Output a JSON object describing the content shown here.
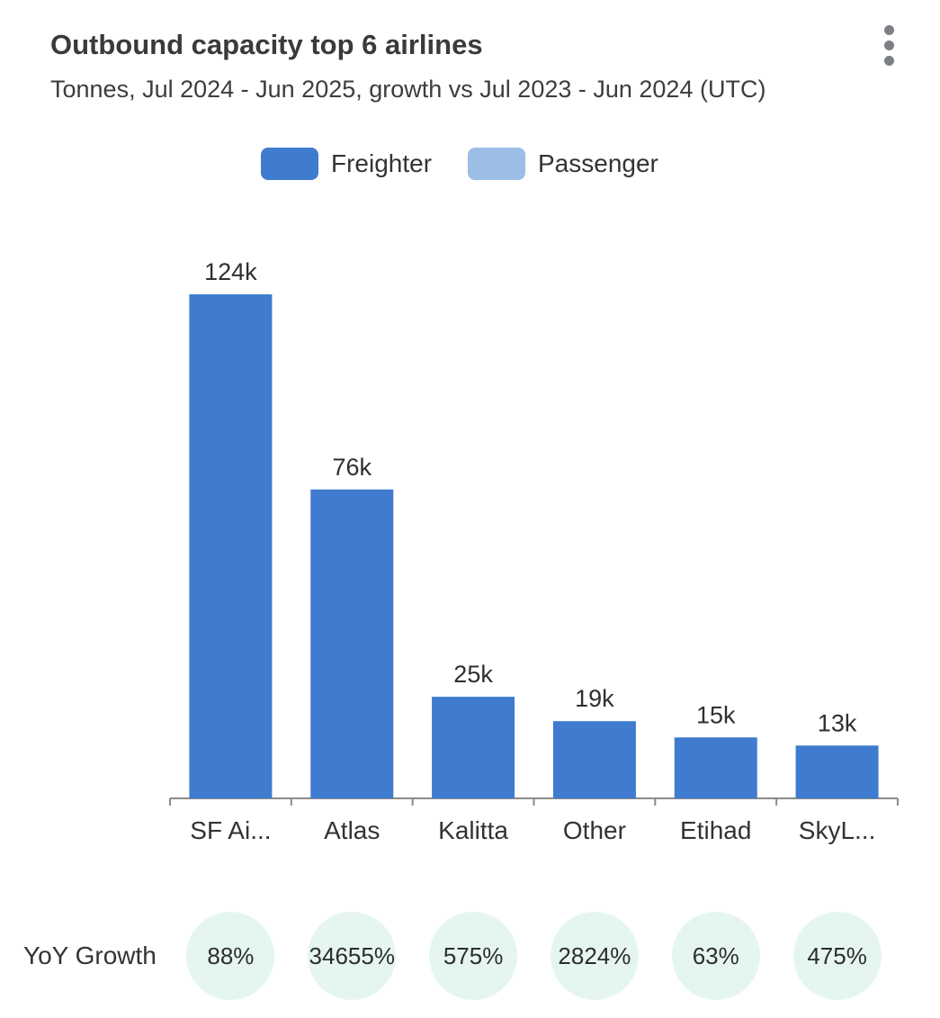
{
  "header": {
    "title": "Outbound capacity top 6 airlines",
    "subtitle": "Tonnes, Jul 2024 - Jun 2025, growth vs Jul 2023 - Jun 2024 (UTC)",
    "menu_icon": "more-vertical-icon"
  },
  "legend": {
    "items": [
      {
        "label": "Freighter",
        "color": "#3f7bcf"
      },
      {
        "label": "Passenger",
        "color": "#9bbde6"
      }
    ],
    "placement": "top-center"
  },
  "chart_data": {
    "type": "bar",
    "title": "Outbound capacity top 6 airlines",
    "subtitle": "Tonnes, Jul 2024 - Jun 2025, growth vs Jul 2023 - Jun 2024 (UTC)",
    "categories": [
      "SF Ai...",
      "Atlas",
      "Kalitta",
      "Other",
      "Etihad",
      "SkyL..."
    ],
    "series": [
      {
        "name": "Freighter",
        "values": [
          124000,
          76000,
          25000,
          19000,
          15000,
          13000
        ],
        "color": "#3f7bcf"
      },
      {
        "name": "Passenger",
        "values": [
          0,
          0,
          0,
          0,
          0,
          0
        ],
        "color": "#9bbde6"
      }
    ],
    "data_labels": [
      "124k",
      "76k",
      "25k",
      "19k",
      "15k",
      "13k"
    ],
    "xlabel": "",
    "ylabel": "",
    "ylim": [
      0,
      124000
    ],
    "grid": false,
    "stacked": true
  },
  "yoy": {
    "label": "YoY Growth",
    "values": [
      "88%",
      "34655%",
      "575%",
      "2824%",
      "63%",
      "475%"
    ],
    "badge_color": "#e5f6f1"
  }
}
